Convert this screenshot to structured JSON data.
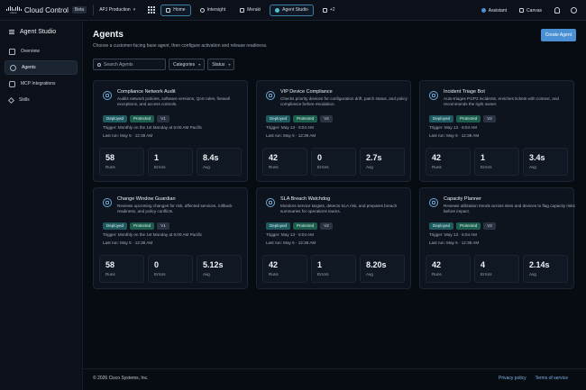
{
  "topbar": {
    "logo_text": "cisco",
    "app_title": "Cloud Control",
    "beta": "Beta",
    "org": "APJ Production",
    "tabs": [
      {
        "label": "Home",
        "active": true
      },
      {
        "label": "Intersight",
        "active": false
      },
      {
        "label": "Meraki",
        "active": false
      },
      {
        "label": "Agent Studio",
        "active": true
      },
      {
        "label": "+2",
        "active": false
      }
    ],
    "assistant": "Assistant",
    "canvas": "Canvas"
  },
  "sidebar": {
    "title": "Agent Studio",
    "items": [
      {
        "label": "Overview",
        "icon": "grid-icon",
        "active": false
      },
      {
        "label": "Agents",
        "icon": "globe-icon",
        "active": true
      },
      {
        "label": "MCP Integrations",
        "icon": "plug-icon",
        "active": false
      },
      {
        "label": "Skills",
        "icon": "tools-icon",
        "active": false
      }
    ]
  },
  "main": {
    "title": "Agents",
    "subtitle": "Choose a customer-facing base agent, then configure activation and release readiness.",
    "create_button": "Create Agent",
    "search_placeholder": "Search Agents",
    "filters": [
      "Categories",
      "Status"
    ]
  },
  "stat_labels": {
    "runs": "Runs",
    "errors": "Errors",
    "avg": "Avg"
  },
  "agents": [
    {
      "name": "Compliance Network Audit",
      "description": "Audits network policies, software versions, QoS rules, firewall exceptions, and access controls.",
      "badges": [
        "Deployed",
        "Protected",
        "V1"
      ],
      "trigger": "Trigger: Monthly on the 1st Monday at 6:00 AM Pacific",
      "last_run": "Last run: May 5 · 12:38 AM",
      "runs": "58",
      "errors": "1",
      "avg": "8.4s"
    },
    {
      "name": "VIP Device Compliance",
      "description": "Checks priority devices for configuration drift, patch status, and policy compliance before escalation.",
      "badges": [
        "Deployed",
        "Protected",
        "V2"
      ],
      "trigger": "Trigger: May 13 · 6:04 AM",
      "last_run": "Last run: May 5 · 12:38 AM",
      "runs": "42",
      "errors": "0",
      "avg": "2.7s"
    },
    {
      "name": "Incident Triage Bot",
      "description": "Auto-triages P1/P2 incidents, enriches tickets with context, and recommends the right owner.",
      "badges": [
        "Deployed",
        "Protected",
        "V2"
      ],
      "trigger": "Trigger: May 13 · 6:04 AM",
      "last_run": "Last run: May 5 · 12:38 AM",
      "runs": "42",
      "errors": "1",
      "avg": "3.4s"
    },
    {
      "name": "Change Window Guardian",
      "description": "Reviews upcoming changes for risk, affected services, rollback readiness, and policy conflicts.",
      "badges": [
        "Deployed",
        "Protected",
        "V1"
      ],
      "trigger": "Trigger: Monthly on the 1st Monday at 6:00 AM Pacific",
      "last_run": "Last run: May 5 · 12:38 AM",
      "runs": "58",
      "errors": "0",
      "avg": "5.12s"
    },
    {
      "name": "SLA Breach Watchdog",
      "description": "Monitors service targets, detects SLA risk, and prepares breach summaries for operations teams.",
      "badges": [
        "Deployed",
        "Protected",
        "V2"
      ],
      "trigger": "Trigger: May 13 · 6:04 AM",
      "last_run": "Last run: May 5 · 12:38 AM",
      "runs": "42",
      "errors": "1",
      "avg": "8.20s"
    },
    {
      "name": "Capacity Planner",
      "description": "Reviews utilization trends across sites and devices to flag capacity risks before impact.",
      "badges": [
        "Deployed",
        "Protected",
        "V2"
      ],
      "trigger": "Trigger: May 13 · 6:04 AM",
      "last_run": "Last run: May 5 · 12:38 AM",
      "runs": "42",
      "errors": "4",
      "avg": "2.14s"
    }
  ],
  "footer": {
    "copyright": "© 2026 Cisco Systems, Inc.",
    "links": [
      "Privacy policy",
      "Terms of service"
    ]
  },
  "colors": {
    "accent": "#4a90d4",
    "deployed": "#1f5a61",
    "protected": "#1d5d4d"
  }
}
